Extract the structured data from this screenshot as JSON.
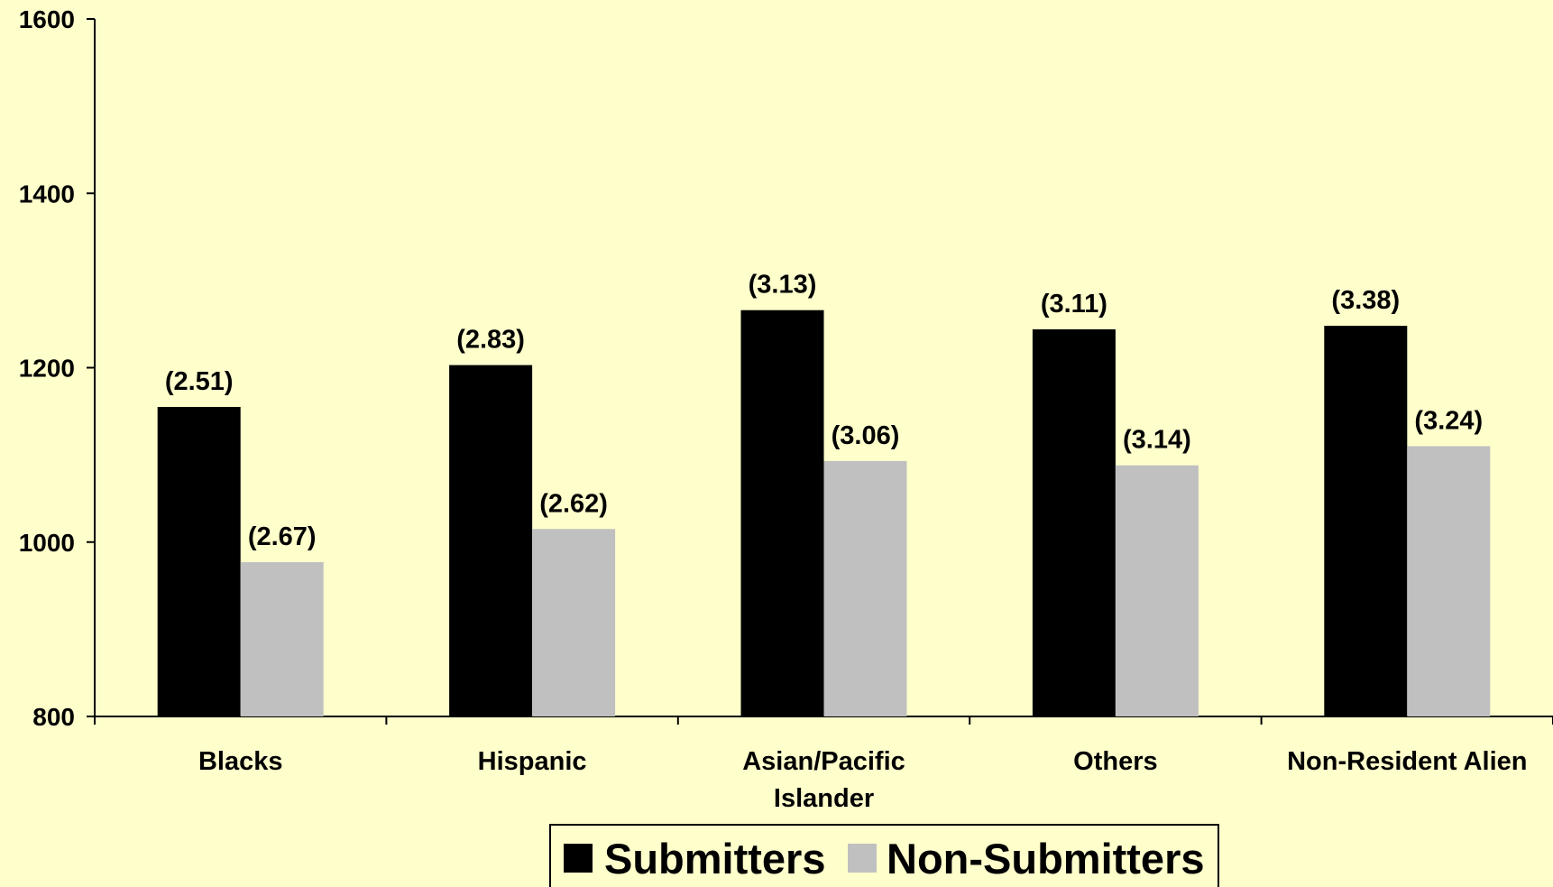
{
  "chart_data": {
    "type": "bar",
    "categories": [
      [
        "Blacks"
      ],
      [
        "Hispanic"
      ],
      [
        "Asian/Pacific",
        "Islander"
      ],
      [
        "Others"
      ],
      [
        "Non-Resident Alien"
      ]
    ],
    "series": [
      {
        "name": "Submitters",
        "color": "#000000",
        "values": [
          1155,
          1203,
          1266,
          1244,
          1248
        ],
        "labels": [
          "(2.51)",
          "(2.83)",
          "(3.13)",
          "(3.11)",
          "(3.38)"
        ]
      },
      {
        "name": "Non-Submitters",
        "color": "#c0c0c0",
        "values": [
          977,
          1015,
          1093,
          1088,
          1110
        ],
        "labels": [
          "(2.67)",
          "(2.62)",
          "(3.06)",
          "(3.14)",
          "(3.24)"
        ]
      }
    ],
    "yticks": [
      "800",
      "1000",
      "1200",
      "1400",
      "1600"
    ],
    "ylim": [
      800,
      1600
    ],
    "legend_position": "bottom",
    "background": "#ffffcc"
  }
}
